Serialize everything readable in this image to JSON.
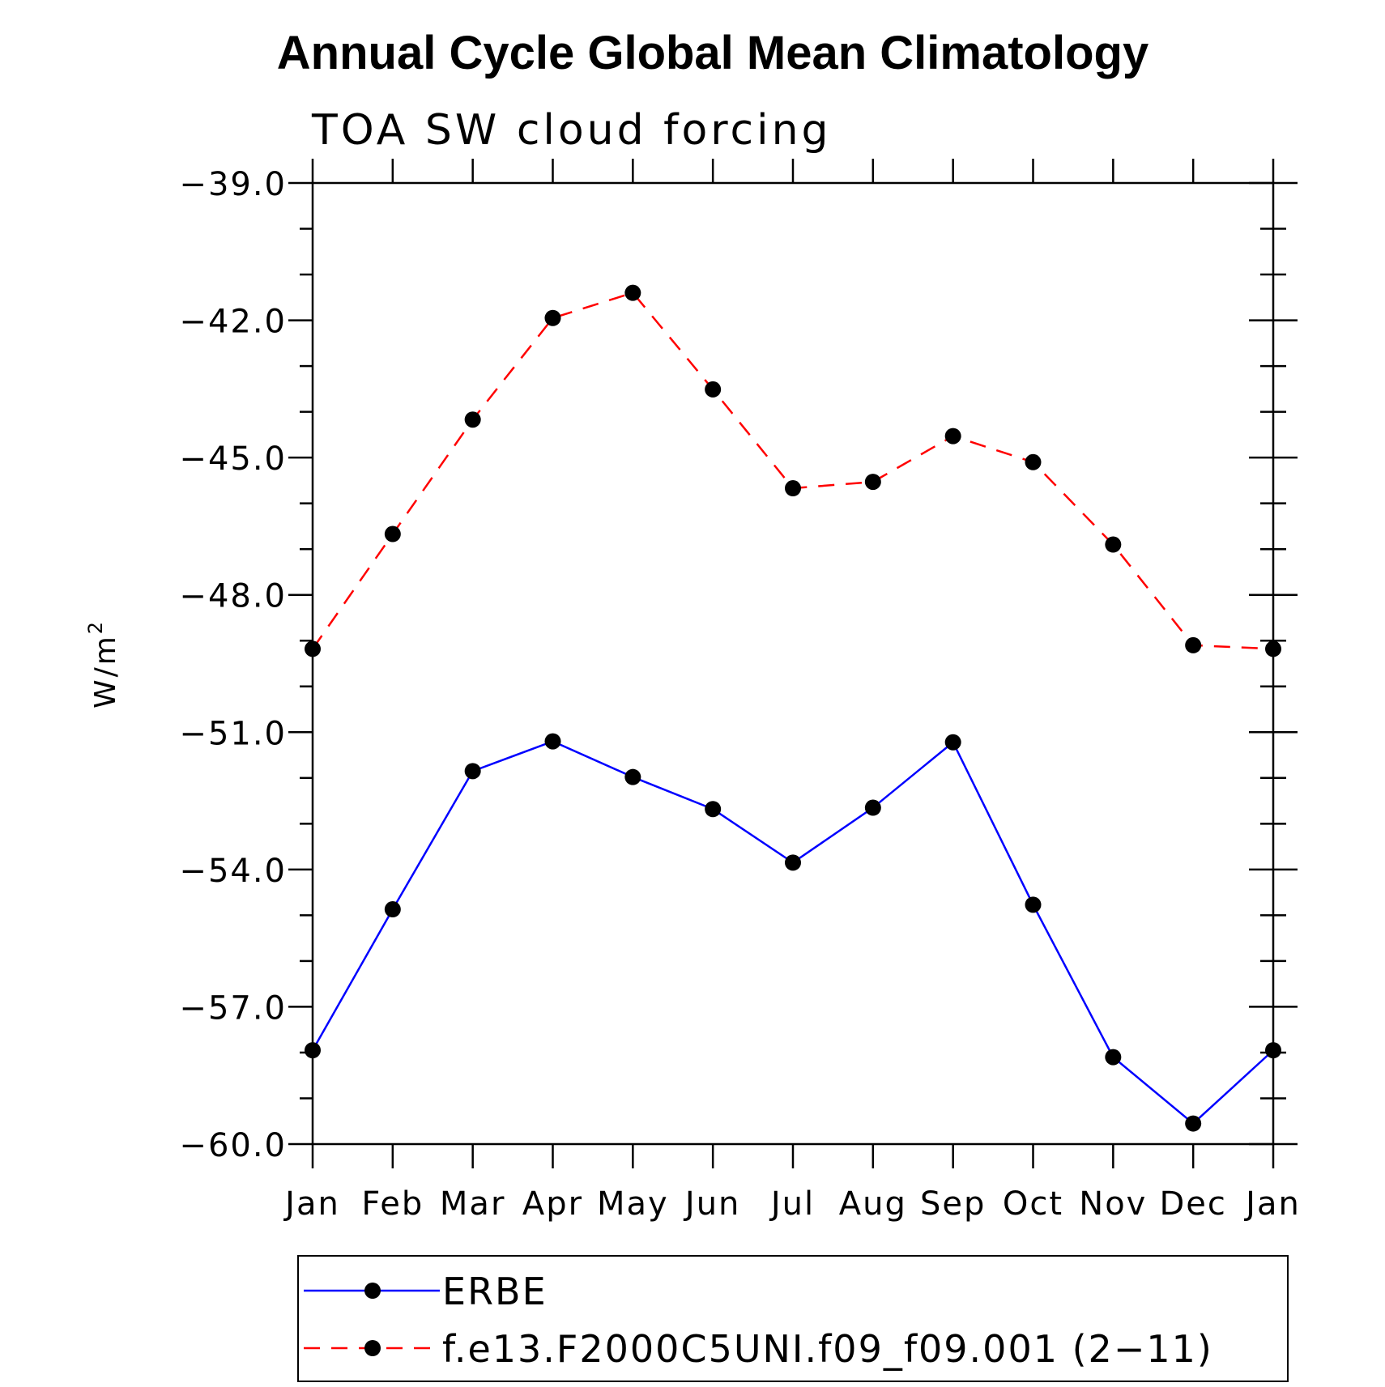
{
  "chart_data": {
    "type": "line",
    "title": "Annual Cycle Global Mean Climatology",
    "subtitle": "TOA SW cloud forcing",
    "ylabel": "W/m",
    "ylabel_superscript": "2",
    "xlabel": "",
    "categories": [
      "Jan",
      "Feb",
      "Mar",
      "Apr",
      "May",
      "Jun",
      "Jul",
      "Aug",
      "Sep",
      "Oct",
      "Nov",
      "Dec",
      "Jan"
    ],
    "ylim": [
      -60.0,
      -39.0
    ],
    "yticks": [
      -39.0,
      -42.0,
      -45.0,
      -48.0,
      -51.0,
      -54.0,
      -57.0,
      -60.0
    ],
    "ytick_labels": [
      "−39.0",
      "−42.0",
      "−45.0",
      "−48.0",
      "−51.0",
      "−54.0",
      "−57.0",
      "−60.0"
    ],
    "series": [
      {
        "name": "ERBE",
        "color": "#0000ff",
        "line_style": "solid",
        "marker": "filled-circle",
        "values": [
          -57.95,
          -54.87,
          -51.85,
          -51.2,
          -51.98,
          -52.68,
          -53.85,
          -52.65,
          -51.22,
          -54.77,
          -58.1,
          -59.55,
          -57.95
        ]
      },
      {
        "name": "f.e13.F2000C5UNI.f09_f09.001 (2−11)",
        "color": "#ff0000",
        "line_style": "dashed",
        "marker": "filled-circle",
        "values": [
          -49.18,
          -46.67,
          -44.17,
          -41.95,
          -41.4,
          -43.51,
          -45.67,
          -45.53,
          -44.53,
          -45.1,
          -46.9,
          -49.1,
          -49.18
        ]
      }
    ],
    "legend": {
      "position": "bottom",
      "entries": [
        "ERBE",
        "f.e13.F2000C5UNI.f09_f09.001 (2−11)"
      ]
    },
    "marker_color": "#000000",
    "grid": false
  }
}
